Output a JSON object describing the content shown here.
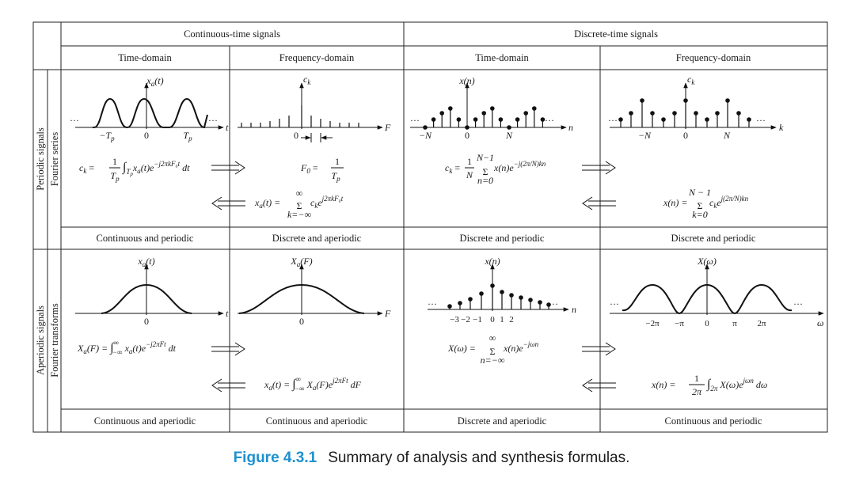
{
  "headers": {
    "continuous": "Continuous-time signals",
    "discrete": "Discrete-time signals",
    "time_domain": "Time-domain",
    "freq_domain": "Frequency-domain"
  },
  "row_labels": {
    "periodic": "Periodic signals",
    "fourier_series": "Fourier series",
    "aperiodic": "Aperiodic signals",
    "fourier_transforms": "Fourier transforms"
  },
  "classifications": {
    "p_ct_time": "Continuous and periodic",
    "p_ct_freq": "Discrete and aperiodic",
    "p_dt_time": "Discrete and periodic",
    "p_dt_freq": "Discrete and periodic",
    "a_ct_time": "Continuous and aperiodic",
    "a_ct_freq": "Continuous and aperiodic",
    "a_dt_time": "Discrete and aperiodic",
    "a_dt_freq": "Continuous and periodic"
  },
  "plots": {
    "p1": {
      "ylabel": "x_a(t)",
      "xvar": "t",
      "ticks": [
        "−T_p",
        "0",
        "T_p"
      ],
      "ellipsis": "···"
    },
    "p2": {
      "ylabel": "c_k",
      "xvar": "F",
      "ticks": [
        "0"
      ],
      "spacing_label": "F₀ = 1/T_p"
    },
    "p3": {
      "ylabel": "x(n)",
      "xvar": "n",
      "ticks": [
        "−N",
        "0",
        "N"
      ],
      "ellipsis": "···"
    },
    "p4": {
      "ylabel": "c_k",
      "xvar": "k",
      "ticks": [
        "−N",
        "0",
        "N"
      ],
      "ellipsis": "···"
    },
    "a1": {
      "ylabel": "x_a(t)",
      "xvar": "t",
      "ticks": [
        "0"
      ]
    },
    "a2": {
      "ylabel": "X_a(F)",
      "xvar": "F",
      "ticks": [
        "0"
      ]
    },
    "a3": {
      "ylabel": "x(n)",
      "xvar": "n",
      "ticks": [
        "−3",
        "−2",
        "−1",
        "0",
        "1",
        "2"
      ],
      "ellipsis": "···"
    },
    "a4": {
      "ylabel": "X(ω)",
      "xvar": "ω",
      "ticks": [
        "−2π",
        "−π",
        "0",
        "π",
        "2π"
      ],
      "ellipsis": "···"
    }
  },
  "formulas": {
    "p_ct_analysis": "c_k = (1/T_p) ∫_{T_p} x_a(t) e^{−j2πkF₀t} dt",
    "p_ct_synthesis": "x_a(t) = Σ_{k=−∞}^{∞} c_k e^{j2πkF₀t}",
    "p_ct_f0": "F₀ = 1/T_p",
    "p_dt_analysis": "c_k = (1/N) Σ_{n=0}^{N−1} x(n) e^{−j(2π/N)kn}",
    "p_dt_synthesis": "x(n) = Σ_{k=0}^{N−1} c_k e^{j(2π/N)kn}",
    "a_ct_analysis": "X_a(F) = ∫_{−∞}^{∞} x_a(t) e^{−j2πFt} dt",
    "a_ct_synthesis": "x_a(t) = ∫_{−∞}^{∞} X_a(F) e^{j2πFt} dF",
    "a_dt_analysis": "X(ω) = Σ_{n=−∞}^{∞} x(n) e^{−jωn}",
    "a_dt_synthesis": "x(n) = (1/2π) ∫_{2π} X(ω) e^{jωn} dω"
  },
  "caption": {
    "number": "Figure 4.3.1",
    "text": "Summary of analysis and synthesis formulas."
  }
}
